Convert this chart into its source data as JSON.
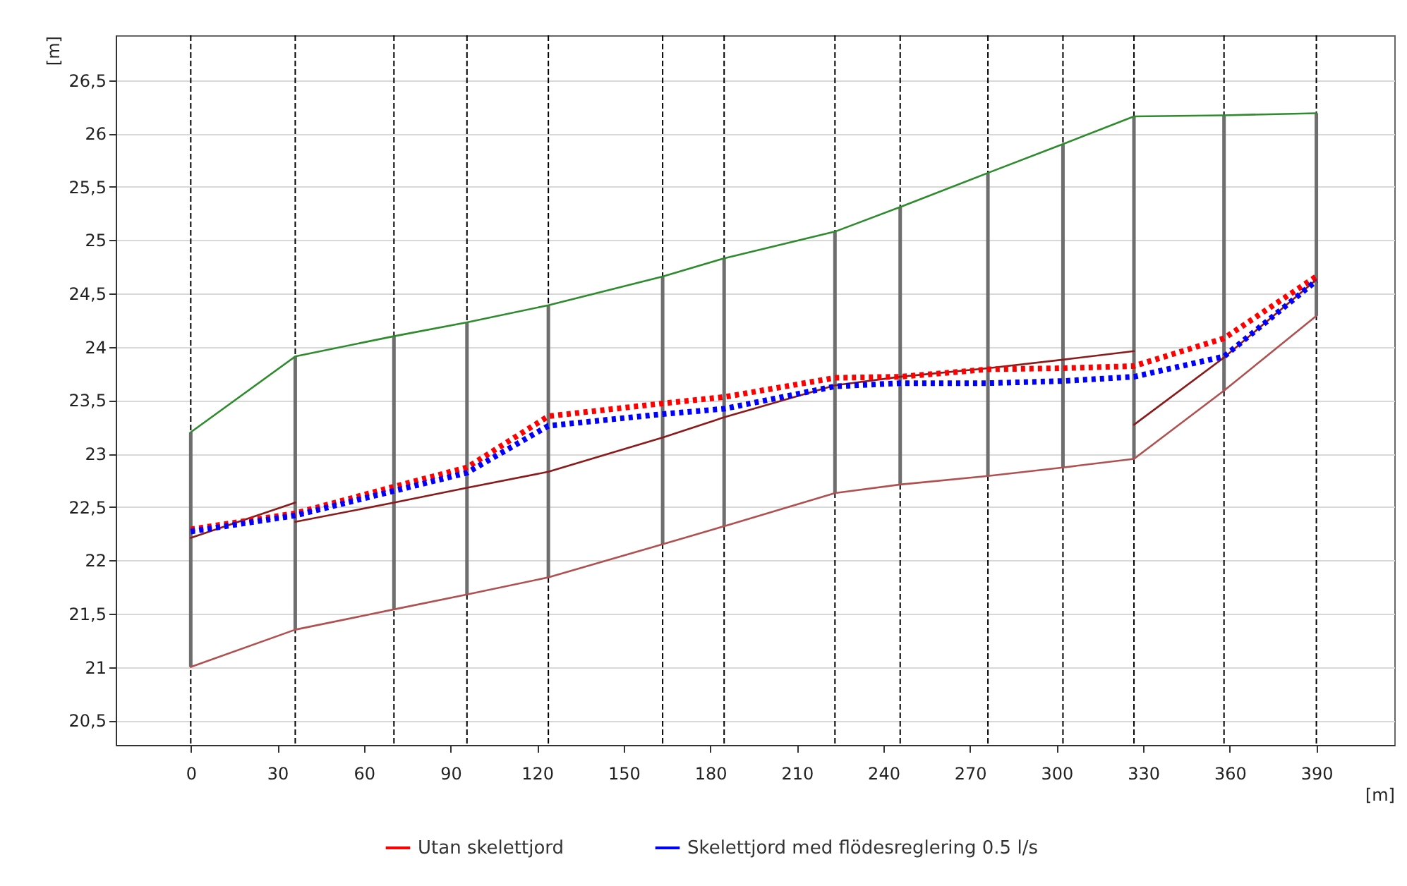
{
  "chart_data": {
    "type": "line",
    "ylabel": "[m]",
    "xlabel": "[m]",
    "xlim": [
      -26,
      417
    ],
    "ylim": [
      20.27,
      26.92
    ],
    "xticks": [
      0,
      30,
      60,
      90,
      120,
      150,
      180,
      210,
      240,
      270,
      300,
      330,
      360,
      390
    ],
    "yticks": [
      {
        "value": 20.5,
        "label": "20,5"
      },
      21,
      {
        "value": 21.5,
        "label": "21,5"
      },
      22,
      {
        "value": 22.5,
        "label": "22,5"
      },
      23,
      {
        "value": 23.5,
        "label": "23,5"
      },
      24,
      {
        "value": 24.5,
        "label": "24,5"
      },
      25,
      {
        "value": 25.5,
        "label": "25,5"
      },
      26,
      {
        "value": 26.5,
        "label": "26,5"
      }
    ],
    "grid": "y",
    "legend": "bottom",
    "ref_lines": [
      {
        "axis": "x",
        "value": 0,
        "color": "#000000",
        "line_style": "dashed"
      },
      {
        "axis": "x",
        "value": 36.2,
        "color": "#000000",
        "line_style": "dashed"
      },
      {
        "axis": "x",
        "value": 70.4,
        "color": "#000000",
        "line_style": "dashed"
      },
      {
        "axis": "x",
        "value": 95.7,
        "color": "#000000",
        "line_style": "dashed"
      },
      {
        "axis": "x",
        "value": 123.9,
        "color": "#000000",
        "line_style": "dashed"
      },
      {
        "axis": "x",
        "value": 163.5,
        "color": "#000000",
        "line_style": "dashed"
      },
      {
        "axis": "x",
        "value": 184.8,
        "color": "#000000",
        "line_style": "dashed"
      },
      {
        "axis": "x",
        "value": 223.2,
        "color": "#000000",
        "line_style": "dashed"
      },
      {
        "axis": "x",
        "value": 245.8,
        "color": "#000000",
        "line_style": "dashed"
      },
      {
        "axis": "x",
        "value": 276.2,
        "color": "#000000",
        "line_style": "dashed"
      },
      {
        "axis": "x",
        "value": 302.2,
        "color": "#000000",
        "line_style": "dashed"
      },
      {
        "axis": "x",
        "value": 326.8,
        "color": "#000000",
        "line_style": "dashed"
      },
      {
        "axis": "x",
        "value": 358.0,
        "color": "#000000",
        "line_style": "dashed"
      },
      {
        "axis": "x",
        "value": 390,
        "color": "#000000",
        "line_style": "dashed"
      }
    ],
    "series": [
      {
        "type": "bar",
        "color": "#6e6e6e",
        "x": [
          0,
          36.2,
          70.4,
          95.7,
          123.9,
          163.5,
          184.8,
          223.2,
          245.8,
          276.2,
          302.2,
          326.8,
          358.0,
          390
        ],
        "base": [
          21.0,
          21.35,
          21.54,
          21.68,
          21.84,
          22.15,
          22.32,
          22.63,
          22.71,
          22.79,
          22.87,
          22.95,
          23.59,
          24.29
        ],
        "values": [
          2.2,
          2.56,
          2.56,
          2.55,
          2.55,
          2.51,
          2.51,
          2.45,
          2.6,
          2.84,
          3.03,
          3.21,
          2.58,
          1.9
        ]
      },
      {
        "color": "#2e8b2e",
        "line_style": "solid",
        "x": [
          0,
          36.2,
          70.4,
          95.7,
          123.9,
          163.5,
          184.8,
          223.2,
          245.8,
          276.2,
          302.2,
          326.8,
          358.0,
          390
        ],
        "values": [
          23.2,
          23.91,
          24.1,
          24.23,
          24.39,
          24.66,
          24.83,
          25.08,
          25.31,
          25.63,
          25.9,
          26.16,
          26.17,
          26.19
        ]
      },
      {
        "color": "#b05050",
        "line_style": "solid",
        "x": [
          0,
          36.2,
          70.4,
          95.7,
          123.9,
          163.5,
          184.8,
          223.2,
          245.8,
          276.2,
          302.2,
          326.8,
          358.0,
          390
        ],
        "values": [
          21.0,
          21.35,
          21.54,
          21.68,
          21.84,
          22.15,
          22.32,
          22.63,
          22.71,
          22.79,
          22.87,
          22.95,
          23.59,
          24.29
        ]
      },
      {
        "color": "#8b1a1a",
        "line_style": "solid",
        "x": [
          0,
          36.2
        ],
        "values": [
          22.21,
          22.54
        ]
      },
      {
        "color": "#8b1a1a",
        "line_style": "solid",
        "x": [
          36.2,
          70.4,
          95.7,
          123.9,
          163.5,
          184.8,
          223.2,
          245.8,
          276.2,
          302.2,
          326.8
        ],
        "values": [
          22.36,
          22.54,
          22.68,
          22.83,
          23.15,
          23.34,
          23.64,
          23.72,
          23.8,
          23.88,
          23.96
        ]
      },
      {
        "color": "#8b1a1a",
        "line_style": "solid",
        "x": [
          326.8,
          358.0,
          390
        ],
        "values": [
          23.27,
          23.9,
          24.63
        ]
      },
      {
        "name": "Utan skelettjord",
        "color": "#ff0000",
        "line_style": "dotted",
        "x": [
          0,
          36.2,
          70.4,
          95.7,
          123.9,
          163.5,
          184.8,
          223.2,
          245.8,
          276.2,
          302.2,
          326.8,
          358.0,
          390
        ],
        "values": [
          22.29,
          22.44,
          22.69,
          22.87,
          23.35,
          23.47,
          23.53,
          23.71,
          23.72,
          23.79,
          23.8,
          23.82,
          24.08,
          24.66
        ]
      },
      {
        "name": "Skelettjord med flödesreglering 0.5 l/s",
        "color": "#0000ff",
        "line_style": "dotted",
        "x": [
          0,
          36.2,
          70.4,
          95.7,
          123.9,
          163.5,
          184.8,
          223.2,
          245.8,
          276.2,
          302.2,
          326.8,
          358.0,
          390
        ],
        "values": [
          22.27,
          22.42,
          22.65,
          22.82,
          23.26,
          23.37,
          23.42,
          23.63,
          23.66,
          23.66,
          23.68,
          23.72,
          23.91,
          24.62
        ]
      }
    ]
  }
}
